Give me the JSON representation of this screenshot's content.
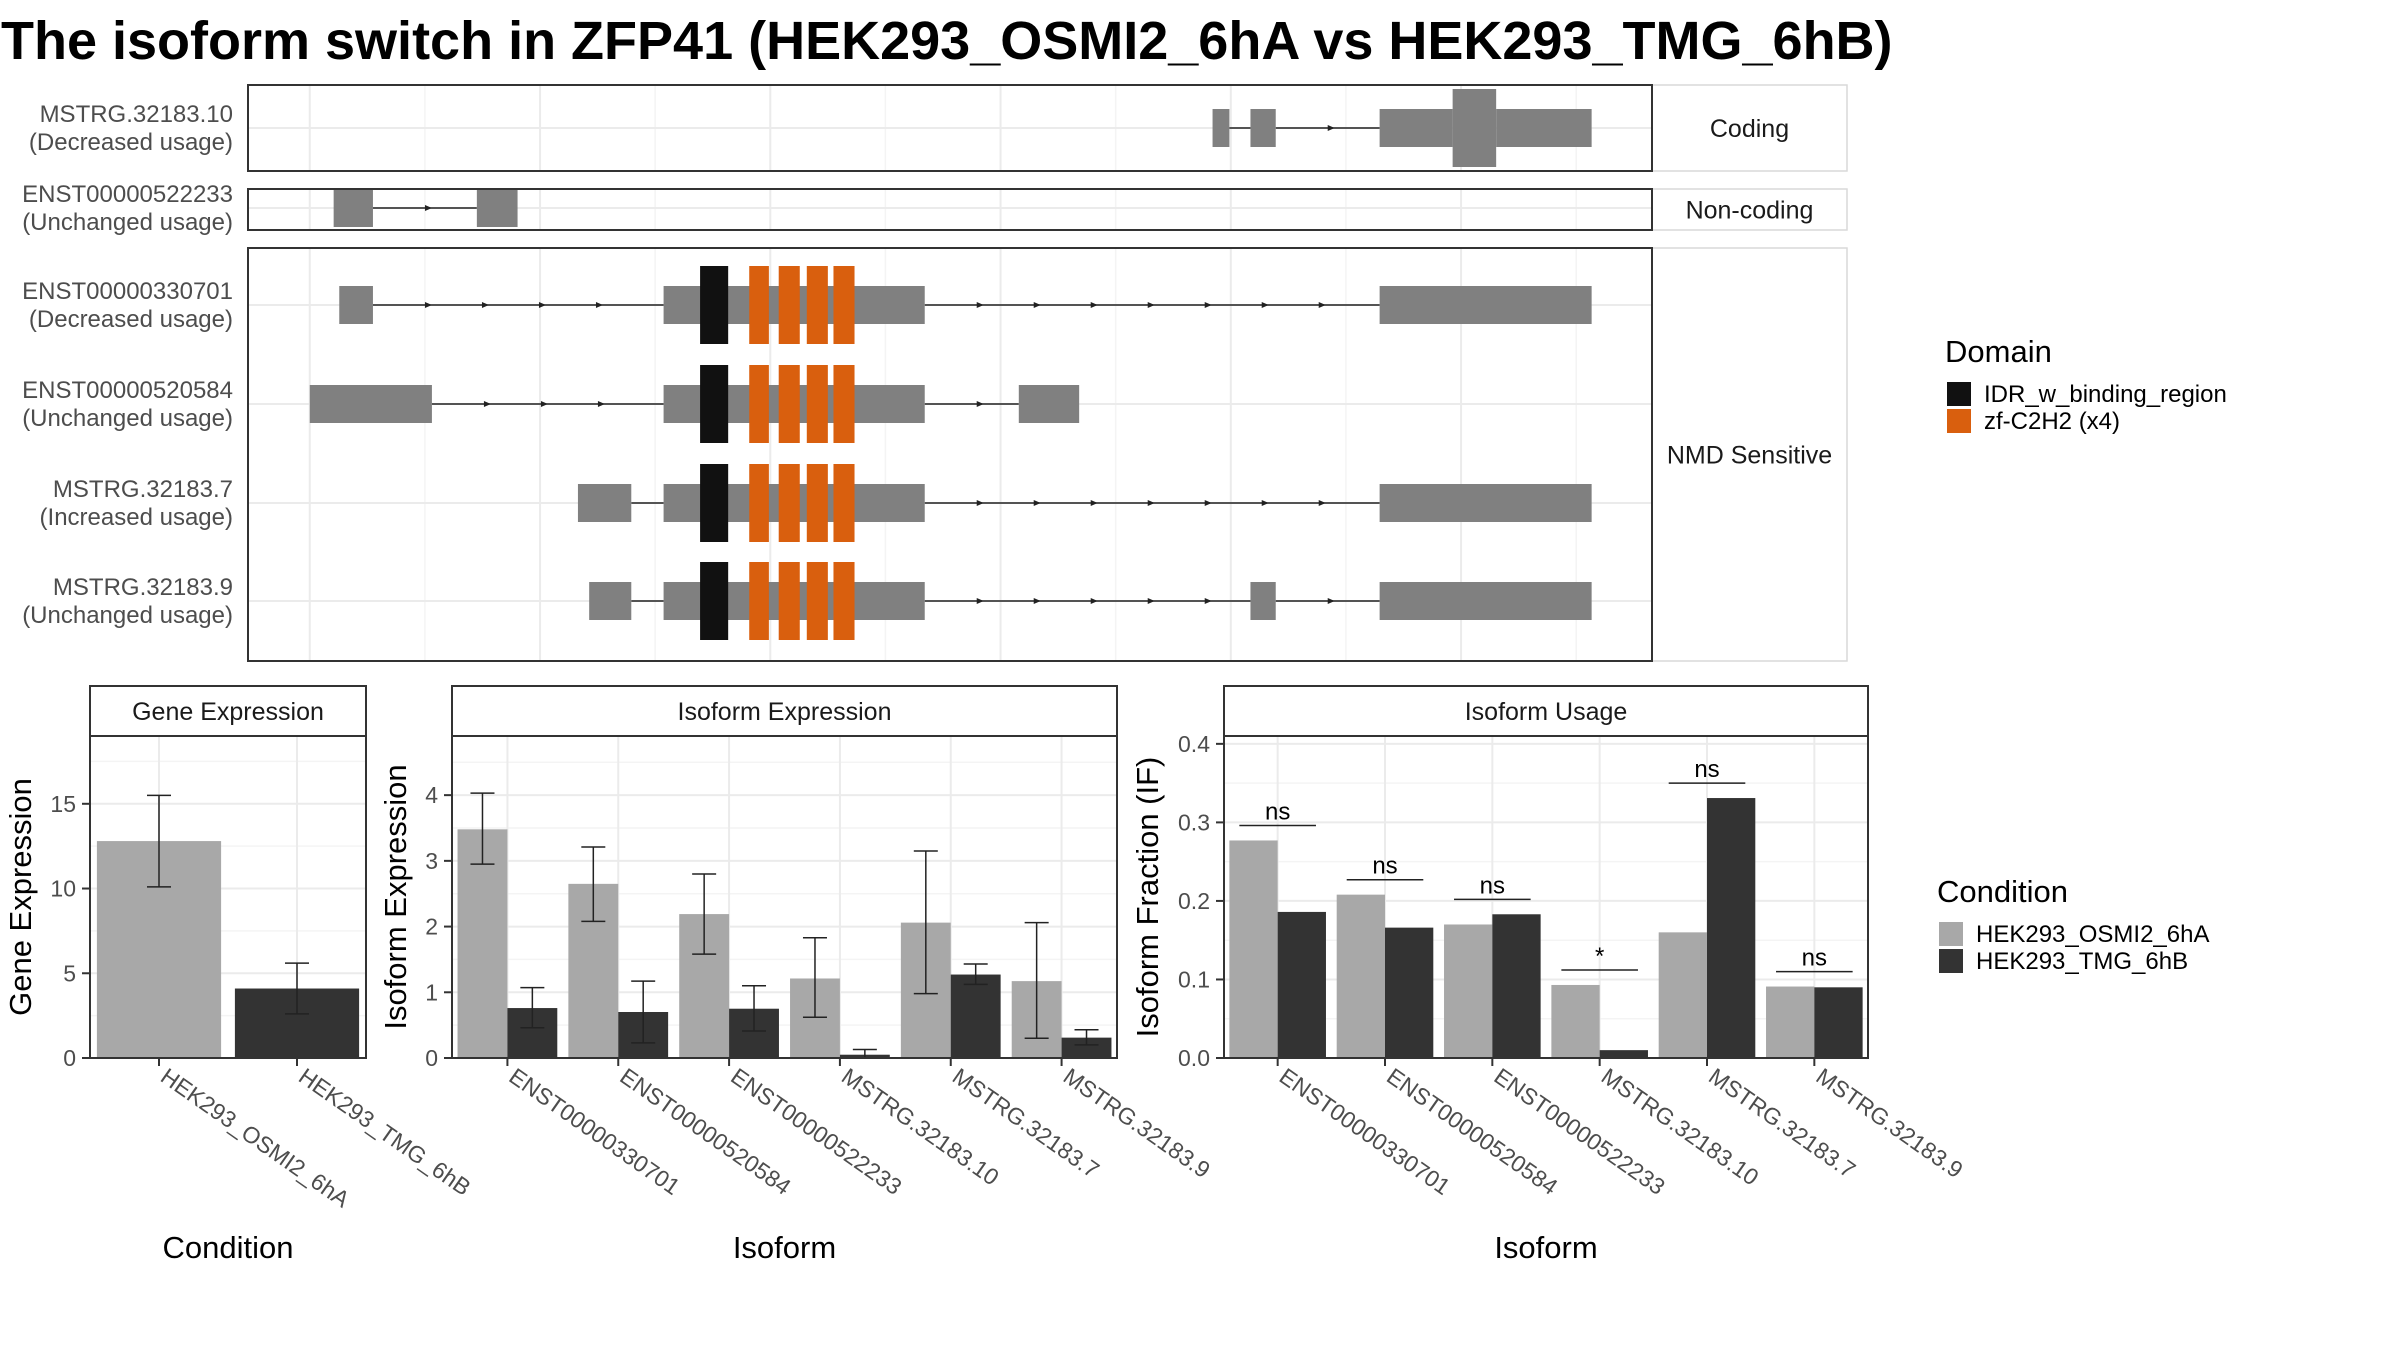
{
  "title": "The isoform switch in ZFP41 (HEK293_OSMI2_6hA vs HEK293_TMG_6hB)",
  "colors": {
    "exon": "#808080",
    "idr": "#111111",
    "zf": "#d95f0e",
    "cond1": "#a8a8a8",
    "cond2": "#333333",
    "grid": "#ebebeb",
    "panel_border": "#333333"
  },
  "chart_data": [
    {
      "type": "isoform-structure",
      "groups": [
        {
          "label": "Coding",
          "isoforms": [
            0
          ]
        },
        {
          "label": "Non-coding",
          "isoforms": [
            1
          ]
        },
        {
          "label": "NMD Sensitive",
          "isoforms": [
            2,
            3,
            4,
            5
          ]
        }
      ],
      "isoforms": [
        {
          "id": "MSTRG.32183.10",
          "status": "(Decreased usage)",
          "exons": [
            [
              0.687,
              0.699,
              "utr"
            ],
            [
              0.714,
              0.732,
              "utr"
            ],
            [
              0.806,
              0.858,
              "utr"
            ],
            [
              0.858,
              0.889,
              "cds"
            ],
            [
              0.889,
              0.957,
              "utr"
            ]
          ],
          "domains": []
        },
        {
          "id": "ENST00000522233",
          "status": "(Unchanged usage)",
          "exons": [
            [
              0.061,
              0.089,
              "utr"
            ],
            [
              0.163,
              0.192,
              "utr"
            ]
          ],
          "domains": []
        },
        {
          "id": "ENST00000330701",
          "status": "(Decreased usage)",
          "exons": [
            [
              0.065,
              0.089,
              "cds"
            ],
            [
              0.296,
              0.482,
              "cds"
            ],
            [
              0.806,
              0.957,
              "cds"
            ]
          ],
          "domains": [
            [
              0.322,
              0.342,
              "idr"
            ],
            [
              0.357,
              0.371,
              "zf"
            ],
            [
              0.378,
              0.393,
              "zf"
            ],
            [
              0.398,
              0.413,
              "zf"
            ],
            [
              0.417,
              0.432,
              "zf"
            ]
          ]
        },
        {
          "id": "ENST00000520584",
          "status": "(Unchanged usage)",
          "exons": [
            [
              0.044,
              0.131,
              "cds"
            ],
            [
              0.296,
              0.482,
              "cds"
            ],
            [
              0.549,
              0.592,
              "cds"
            ]
          ],
          "domains": [
            [
              0.322,
              0.342,
              "idr"
            ],
            [
              0.357,
              0.371,
              "zf"
            ],
            [
              0.378,
              0.393,
              "zf"
            ],
            [
              0.398,
              0.413,
              "zf"
            ],
            [
              0.417,
              0.432,
              "zf"
            ]
          ]
        },
        {
          "id": "MSTRG.32183.7",
          "status": "(Increased usage)",
          "exons": [
            [
              0.235,
              0.273,
              "cds"
            ],
            [
              0.296,
              0.482,
              "cds"
            ],
            [
              0.806,
              0.957,
              "cds"
            ]
          ],
          "domains": [
            [
              0.322,
              0.342,
              "idr"
            ],
            [
              0.357,
              0.371,
              "zf"
            ],
            [
              0.378,
              0.393,
              "zf"
            ],
            [
              0.398,
              0.413,
              "zf"
            ],
            [
              0.417,
              0.432,
              "zf"
            ]
          ]
        },
        {
          "id": "MSTRG.32183.9",
          "status": "(Unchanged usage)",
          "exons": [
            [
              0.243,
              0.273,
              "cds"
            ],
            [
              0.296,
              0.482,
              "cds"
            ],
            [
              0.714,
              0.732,
              "cds"
            ],
            [
              0.806,
              0.957,
              "cds"
            ]
          ],
          "domains": [
            [
              0.322,
              0.342,
              "idr"
            ],
            [
              0.357,
              0.371,
              "zf"
            ],
            [
              0.378,
              0.393,
              "zf"
            ],
            [
              0.398,
              0.413,
              "zf"
            ],
            [
              0.417,
              0.432,
              "zf"
            ]
          ]
        }
      ],
      "legend": {
        "title": "Domain",
        "entries": [
          {
            "name": "IDR_w_binding_region",
            "key": "idr"
          },
          {
            "name": "zf-C2H2 (x4)",
            "key": "zf"
          }
        ]
      }
    },
    {
      "type": "bar",
      "strip": "Gene Expression",
      "xlabel": "Condition",
      "ylabel": "Gene Expression",
      "ylim": [
        0,
        19
      ],
      "yticks": [
        0,
        5,
        10,
        15
      ],
      "categories": [
        "HEK293_OSMI2_6hA",
        "HEK293_TMG_6hB"
      ],
      "values": [
        12.8,
        4.1
      ],
      "err_low": [
        10.1,
        2.6
      ],
      "err_high": [
        15.5,
        5.6
      ]
    },
    {
      "type": "bar",
      "strip": "Isoform Expression",
      "xlabel": "Isoform",
      "ylabel": "Isoform Expression",
      "ylim": [
        0,
        4.9
      ],
      "yticks": [
        0,
        1,
        2,
        3,
        4
      ],
      "categories": [
        "ENST00000330701",
        "ENST00000520584",
        "ENST00000522233",
        "MSTRG.32183.10",
        "MSTRG.32183.7",
        "MSTRG.32183.9"
      ],
      "series": [
        {
          "name": "HEK293_OSMI2_6hA",
          "values": [
            3.48,
            2.65,
            2.19,
            1.21,
            2.06,
            1.17
          ],
          "err_low": [
            2.95,
            2.08,
            1.58,
            0.62,
            0.98,
            0.3
          ],
          "err_high": [
            4.03,
            3.21,
            2.8,
            1.83,
            3.15,
            2.06
          ]
        },
        {
          "name": "HEK293_TMG_6hB",
          "values": [
            0.76,
            0.7,
            0.75,
            0.05,
            1.27,
            0.31
          ],
          "err_low": [
            0.46,
            0.23,
            0.41,
            0.0,
            1.12,
            0.2
          ],
          "err_high": [
            1.07,
            1.17,
            1.1,
            0.13,
            1.43,
            0.43
          ]
        }
      ]
    },
    {
      "type": "bar",
      "strip": "Isoform Usage",
      "xlabel": "Isoform",
      "ylabel": "Isoform Fraction (IF)",
      "ylim": [
        0,
        0.41
      ],
      "yticks": [
        0.0,
        0.1,
        0.2,
        0.3,
        0.4
      ],
      "ytick_labels": [
        "0.0",
        "0.1",
        "0.2",
        "0.3",
        "0.4"
      ],
      "categories": [
        "ENST00000330701",
        "ENST00000520584",
        "ENST00000522233",
        "MSTRG.32183.10",
        "MSTRG.32183.7",
        "MSTRG.32183.9"
      ],
      "series": [
        {
          "name": "HEK293_OSMI2_6hA",
          "values": [
            0.277,
            0.208,
            0.17,
            0.093,
            0.16,
            0.091
          ]
        },
        {
          "name": "HEK293_TMG_6hB",
          "values": [
            0.186,
            0.166,
            0.183,
            0.01,
            0.331,
            0.09
          ]
        }
      ],
      "significance": [
        "ns",
        "ns",
        "ns",
        "*",
        "ns",
        "ns"
      ],
      "sig_y": [
        0.296,
        0.227,
        0.202,
        0.112,
        0.35,
        0.11
      ]
    }
  ],
  "condition_legend": {
    "title": "Condition",
    "entries": [
      "HEK293_OSMI2_6hA",
      "HEK293_TMG_6hB"
    ]
  }
}
